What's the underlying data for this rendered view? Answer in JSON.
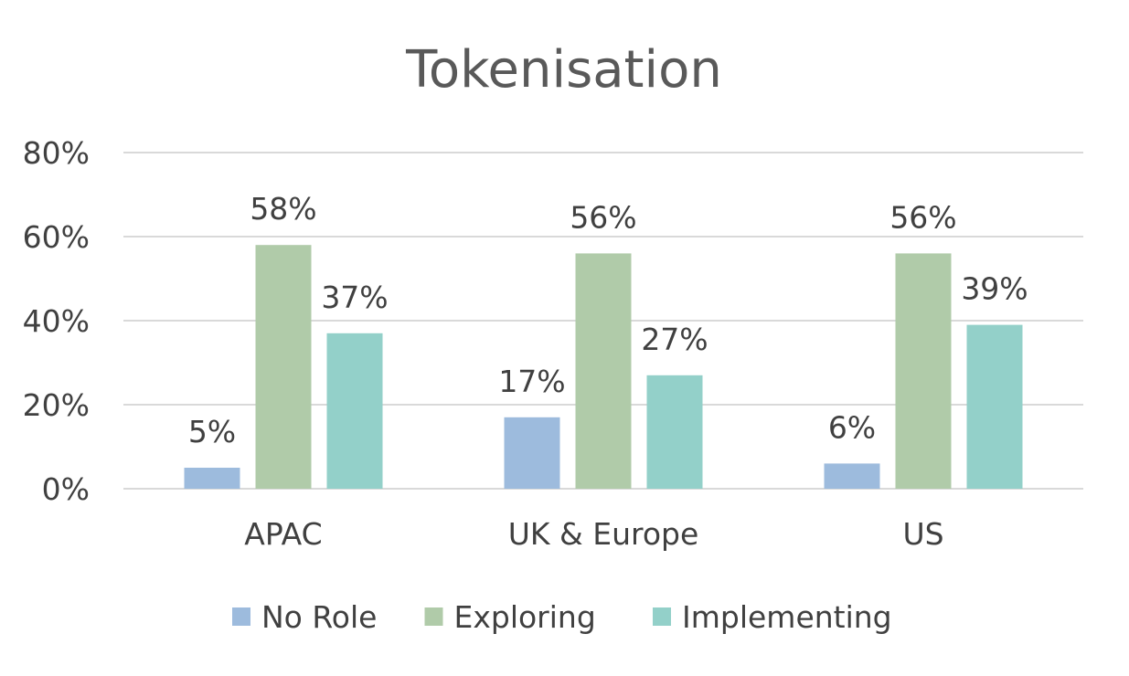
{
  "chart_data": {
    "type": "bar",
    "title": "Tokenisation",
    "categories": [
      "APAC",
      "UK & Europe",
      "US"
    ],
    "series": [
      {
        "name": "No Role",
        "values": [
          5,
          17,
          6
        ],
        "labels": [
          "5%",
          "17%",
          "6%"
        ],
        "color": "#9dbbdd"
      },
      {
        "name": "Exploring",
        "values": [
          58,
          56,
          56
        ],
        "labels": [
          "58%",
          "56%",
          "56%"
        ],
        "color": "#b0cba9"
      },
      {
        "name": "Implementing",
        "values": [
          37,
          27,
          39
        ],
        "labels": [
          "37%",
          "27%",
          "39%"
        ],
        "color": "#93d0c9"
      }
    ],
    "ylim": [
      0,
      80
    ],
    "yticks": [
      0,
      20,
      40,
      60,
      80
    ],
    "ytick_labels": [
      "0%",
      "20%",
      "40%",
      "60%",
      "80%"
    ],
    "grid": true,
    "legend_position": "bottom"
  }
}
